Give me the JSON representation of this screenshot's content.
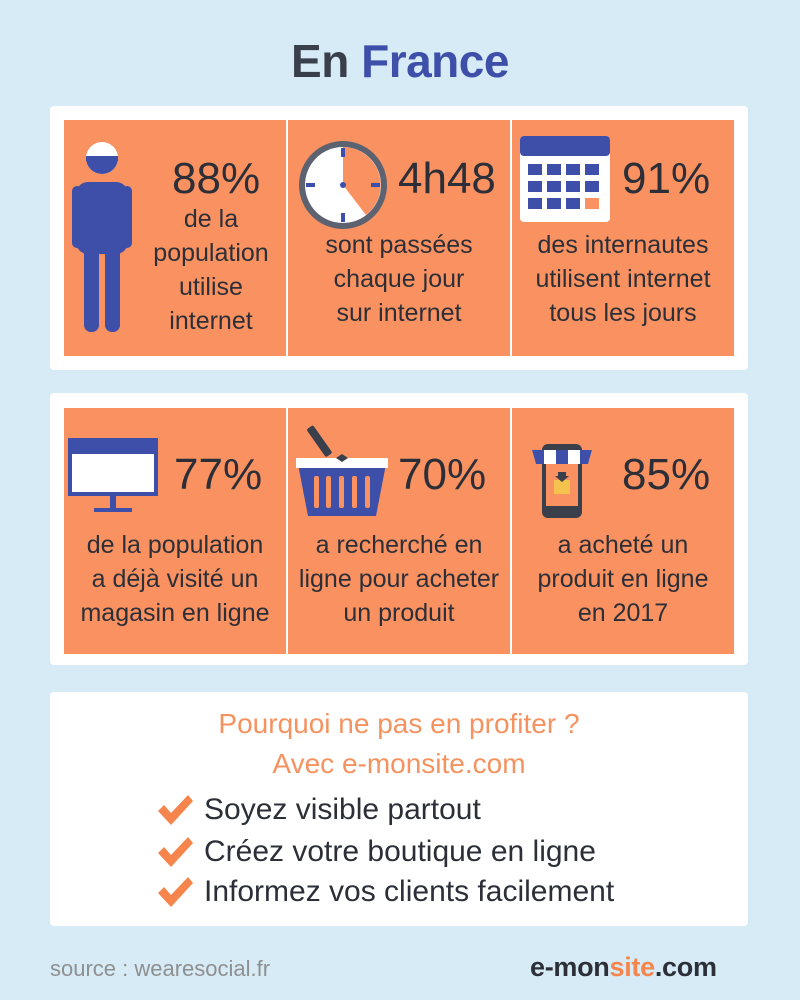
{
  "title": {
    "part1": "En",
    "part2": "France"
  },
  "stats_row1": [
    {
      "value": "88%",
      "line1": "de la",
      "line2": "population",
      "line3": "utilise",
      "line4": "internet",
      "icon": "person-icon"
    },
    {
      "value": "4h48",
      "line1": "sont passées",
      "line2": "chaque jour",
      "line3": "sur internet",
      "icon": "clock-icon"
    },
    {
      "value": "91%",
      "line1": "des internautes",
      "line2": "utilisent internet",
      "line3": "tous les jours",
      "icon": "calendar-icon"
    }
  ],
  "stats_row2": [
    {
      "value": "77%",
      "line1": "de la population",
      "line2": "a déjà visité un",
      "line3": "magasin en ligne",
      "icon": "monitor-icon"
    },
    {
      "value": "70%",
      "line1": "a recherché en",
      "line2": "ligne pour acheter",
      "line3": "un produit",
      "icon": "basket-icon"
    },
    {
      "value": "85%",
      "line1": "a acheté un",
      "line2": "produit en ligne",
      "line3": "en 2017",
      "icon": "phone-shop-icon"
    }
  ],
  "promo": {
    "line1": "Pourquoi ne pas en profiter ?",
    "line2": "Avec e-monsite.com",
    "items": [
      "Soyez visible partout",
      "Créez votre boutique en ligne",
      "Informez vos clients facilement"
    ]
  },
  "footer": {
    "source": "source : wearesocial.fr",
    "brand_part1": "e-mon",
    "brand_part2": "site",
    "brand_part3": ".com"
  },
  "colors": {
    "background": "#d6ebf6",
    "cell": "#f99160",
    "accent_blue": "#3d4fa8",
    "text_dark": "#2c2f38",
    "promo_orange": "#f59360"
  }
}
